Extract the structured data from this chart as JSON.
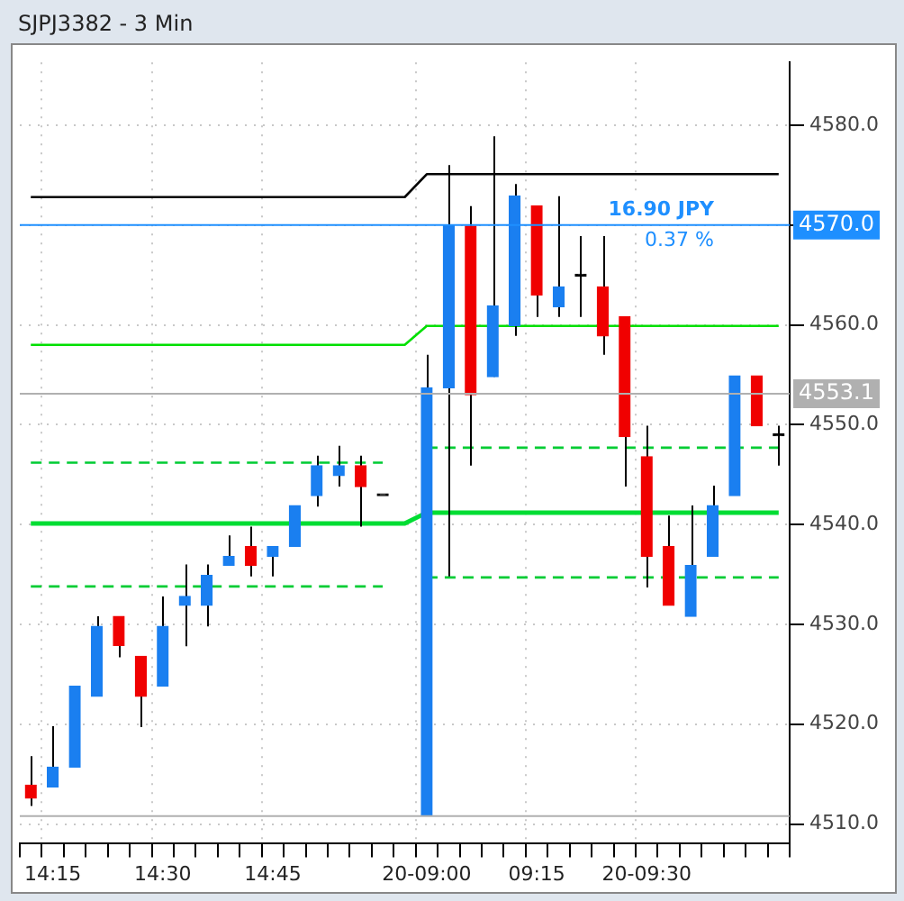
{
  "chart_data": {
    "type": "candlestick",
    "title": "SJPJ3382 - 3 Min",
    "categories": [
      null,
      "14:15",
      null,
      null,
      null,
      null,
      "14:30",
      null,
      null,
      null,
      null,
      "14:45",
      null,
      null,
      null,
      null,
      null,
      null,
      "20-09:00",
      null,
      null,
      null,
      null,
      "09:15",
      null,
      null,
      null,
      null,
      "20-09:30",
      null,
      null,
      null,
      null,
      null,
      null
    ],
    "ohlc": [
      [
        4513.9,
        4516.8,
        4511.8,
        4512.6
      ],
      [
        4513.7,
        4519.8,
        4513.7,
        4515.7
      ],
      [
        4515.7,
        4523.8,
        4515.7,
        4523.8
      ],
      [
        4522.8,
        4530.8,
        4522.8,
        4529.8
      ],
      [
        4530.8,
        4530.8,
        4526.7,
        4527.9
      ],
      [
        4526.8,
        4526.8,
        4519.7,
        4522.8
      ],
      [
        4523.8,
        4532.8,
        4523.8,
        4529.8
      ],
      [
        4531.9,
        4536.0,
        4527.8,
        4532.8
      ],
      [
        4531.9,
        4536.0,
        4529.8,
        4534.9
      ],
      [
        4535.9,
        4538.9,
        4535.9,
        4536.8
      ],
      [
        4537.8,
        4539.8,
        4534.8,
        4535.9
      ],
      [
        4536.8,
        4537.8,
        4534.8,
        4537.8
      ],
      [
        4537.8,
        4541.9,
        4537.8,
        4541.9
      ],
      [
        4542.9,
        4546.9,
        4541.8,
        4545.9
      ],
      [
        4544.9,
        4547.9,
        4543.8,
        4545.9
      ],
      [
        4545.9,
        4546.9,
        4539.8,
        4543.8
      ],
      [
        4542.9,
        4542.9,
        4542.9,
        4542.9
      ],
      null,
      [
        4510.8,
        4557.0,
        4510.8,
        4553.7
      ],
      [
        4553.7,
        4576.0,
        4534.8,
        4570.0
      ],
      [
        4569.9,
        4571.9,
        4545.9,
        4553.0
      ],
      [
        4554.8,
        4578.9,
        4554.8,
        4561.9
      ],
      [
        4559.9,
        4574.1,
        4558.9,
        4572.9
      ],
      [
        4571.9,
        4571.9,
        4560.8,
        4563.0
      ],
      [
        4561.8,
        4572.9,
        4560.8,
        4563.8
      ],
      [
        4564.9,
        4568.9,
        4560.8,
        4564.9
      ],
      [
        4563.8,
        4568.9,
        4557.0,
        4558.9
      ],
      [
        4560.8,
        4560.8,
        4543.8,
        4548.8
      ],
      [
        4546.8,
        4549.9,
        4533.7,
        4536.8
      ],
      [
        4537.8,
        4540.9,
        4531.9,
        4531.9
      ],
      [
        4530.8,
        4541.9,
        4530.8,
        4535.9
      ],
      [
        4536.8,
        4543.9,
        4536.8,
        4541.9
      ],
      [
        4542.9,
        4554.9,
        4542.9,
        4554.9
      ],
      [
        4554.9,
        4554.9,
        4549.9,
        4549.9
      ],
      [
        4548.9,
        4549.9,
        4545.9,
        4548.9
      ]
    ],
    "colors": [
      "#f00000",
      "#1a7ff0",
      "#1a7ff0",
      "#1a7ff0",
      "#f00000",
      "#f00000",
      "#1a7ff0",
      "#1a7ff0",
      "#1a7ff0",
      "#1a7ff0",
      "#f00000",
      "#1a7ff0",
      "#1a7ff0",
      "#1a7ff0",
      "#1a7ff0",
      "#f00000",
      "#000000",
      "#000000",
      "#1a7ff0",
      "#1a7ff0",
      "#f00000",
      "#1a7ff0",
      "#1a7ff0",
      "#f00000",
      "#1a7ff0",
      "#000000",
      "#f00000",
      "#f00000",
      "#f00000",
      "#f00000",
      "#1a7ff0",
      "#1a7ff0",
      "#1a7ff0",
      "#f00000",
      "#000000"
    ],
    "series": [
      {
        "type": "line",
        "color": "#000000",
        "line_style": "solid",
        "values": [
          4572.8,
          4572.8,
          4572.8,
          4572.8,
          4572.8,
          4572.8,
          4572.8,
          4572.8,
          4572.8,
          4572.8,
          4572.8,
          4572.8,
          4572.8,
          4572.8,
          4572.8,
          4572.8,
          4572.8,
          4572.8,
          4575.1,
          4575.1,
          4575.1,
          4575.1,
          4575.1,
          4575.1,
          4575.1,
          4575.1,
          4575.1,
          4575.1,
          4575.1,
          4575.1,
          4575.1,
          4575.1,
          4575.1,
          4575.1,
          4575.1
        ]
      },
      {
        "type": "line",
        "color": "#00e000",
        "line_style": "solid",
        "values": [
          4558.0,
          4558.0,
          4558.0,
          4558.0,
          4558.0,
          4558.0,
          4558.0,
          4558.0,
          4558.0,
          4558.0,
          4558.0,
          4558.0,
          4558.0,
          4558.0,
          4558.0,
          4558.0,
          4558.0,
          4558.0,
          4559.9,
          4559.9,
          4559.9,
          4559.9,
          4559.9,
          4559.9,
          4559.9,
          4559.9,
          4559.9,
          4559.9,
          4559.9,
          4559.9,
          4559.9,
          4559.9,
          4559.9,
          4559.9,
          4559.9
        ]
      },
      {
        "type": "line",
        "color": "#00dd33",
        "line_style": "solid",
        "values": [
          4540.1,
          4540.1,
          4540.1,
          4540.1,
          4540.1,
          4540.1,
          4540.1,
          4540.1,
          4540.1,
          4540.1,
          4540.1,
          4540.1,
          4540.1,
          4540.1,
          4540.1,
          4540.1,
          4540.1,
          4540.1,
          4541.2,
          4541.2,
          4541.2,
          4541.2,
          4541.2,
          4541.2,
          4541.2,
          4541.2,
          4541.2,
          4541.2,
          4541.2,
          4541.2,
          4541.2,
          4541.2,
          4541.2,
          4541.2,
          4541.2
        ]
      },
      {
        "type": "line",
        "color": "#00cc33",
        "line_style": "dashed",
        "values": [
          4546.2,
          4546.2,
          4546.2,
          4546.2,
          4546.2,
          4546.2,
          4546.2,
          4546.2,
          4546.2,
          4546.2,
          4546.2,
          4546.2,
          4546.2,
          4546.2,
          4546.2,
          4546.2,
          4546.2,
          null,
          4547.7,
          4547.7,
          4547.7,
          4547.7,
          4547.7,
          4547.7,
          4547.7,
          4547.7,
          4547.7,
          4547.7,
          4547.7,
          4547.7,
          4547.7,
          4547.7,
          4547.7,
          4547.7,
          4547.7
        ]
      },
      {
        "type": "line",
        "color": "#00cc33",
        "line_style": "dashed",
        "values": [
          4533.8,
          4533.8,
          4533.8,
          4533.8,
          4533.8,
          4533.8,
          4533.8,
          4533.8,
          4533.8,
          4533.8,
          4533.8,
          4533.8,
          4533.8,
          4533.8,
          4533.8,
          4533.8,
          4533.8,
          null,
          4534.7,
          4534.7,
          4534.7,
          4534.7,
          4534.7,
          4534.7,
          4534.7,
          4534.7,
          4534.7,
          4534.7,
          4534.7,
          4534.7,
          4534.7,
          4534.7,
          4534.7,
          4534.7,
          4534.7
        ]
      }
    ],
    "ref_lines": [
      {
        "axis": "y",
        "value": 4570.0,
        "label": "4570.0",
        "color": "#1e8fff"
      },
      {
        "axis": "y",
        "value": 4553.1,
        "label": "4553.1",
        "color": "#b0b0b0"
      },
      {
        "axis": "y",
        "value": 4510.8,
        "color": "#b0b0b0"
      }
    ],
    "annotations": [
      {
        "text": "16.90 JPY",
        "y": 4570.0
      },
      {
        "text": "0.37 %",
        "y": 4570.0
      }
    ],
    "ylim": [
      4508.1,
      4586.3
    ],
    "yticks": [
      {
        "value": 4510,
        "label": "4510.0"
      },
      {
        "value": 4520,
        "label": "4520.0"
      },
      {
        "value": 4530,
        "label": "4530.0"
      },
      {
        "value": 4540,
        "label": "4540.0"
      },
      {
        "value": 4550,
        "label": "4550.0"
      },
      {
        "value": 4560,
        "label": "4560.0"
      },
      {
        "value": 4570,
        "label": null
      },
      {
        "value": 4580,
        "label": "4580.0"
      }
    ],
    "grid": true
  }
}
